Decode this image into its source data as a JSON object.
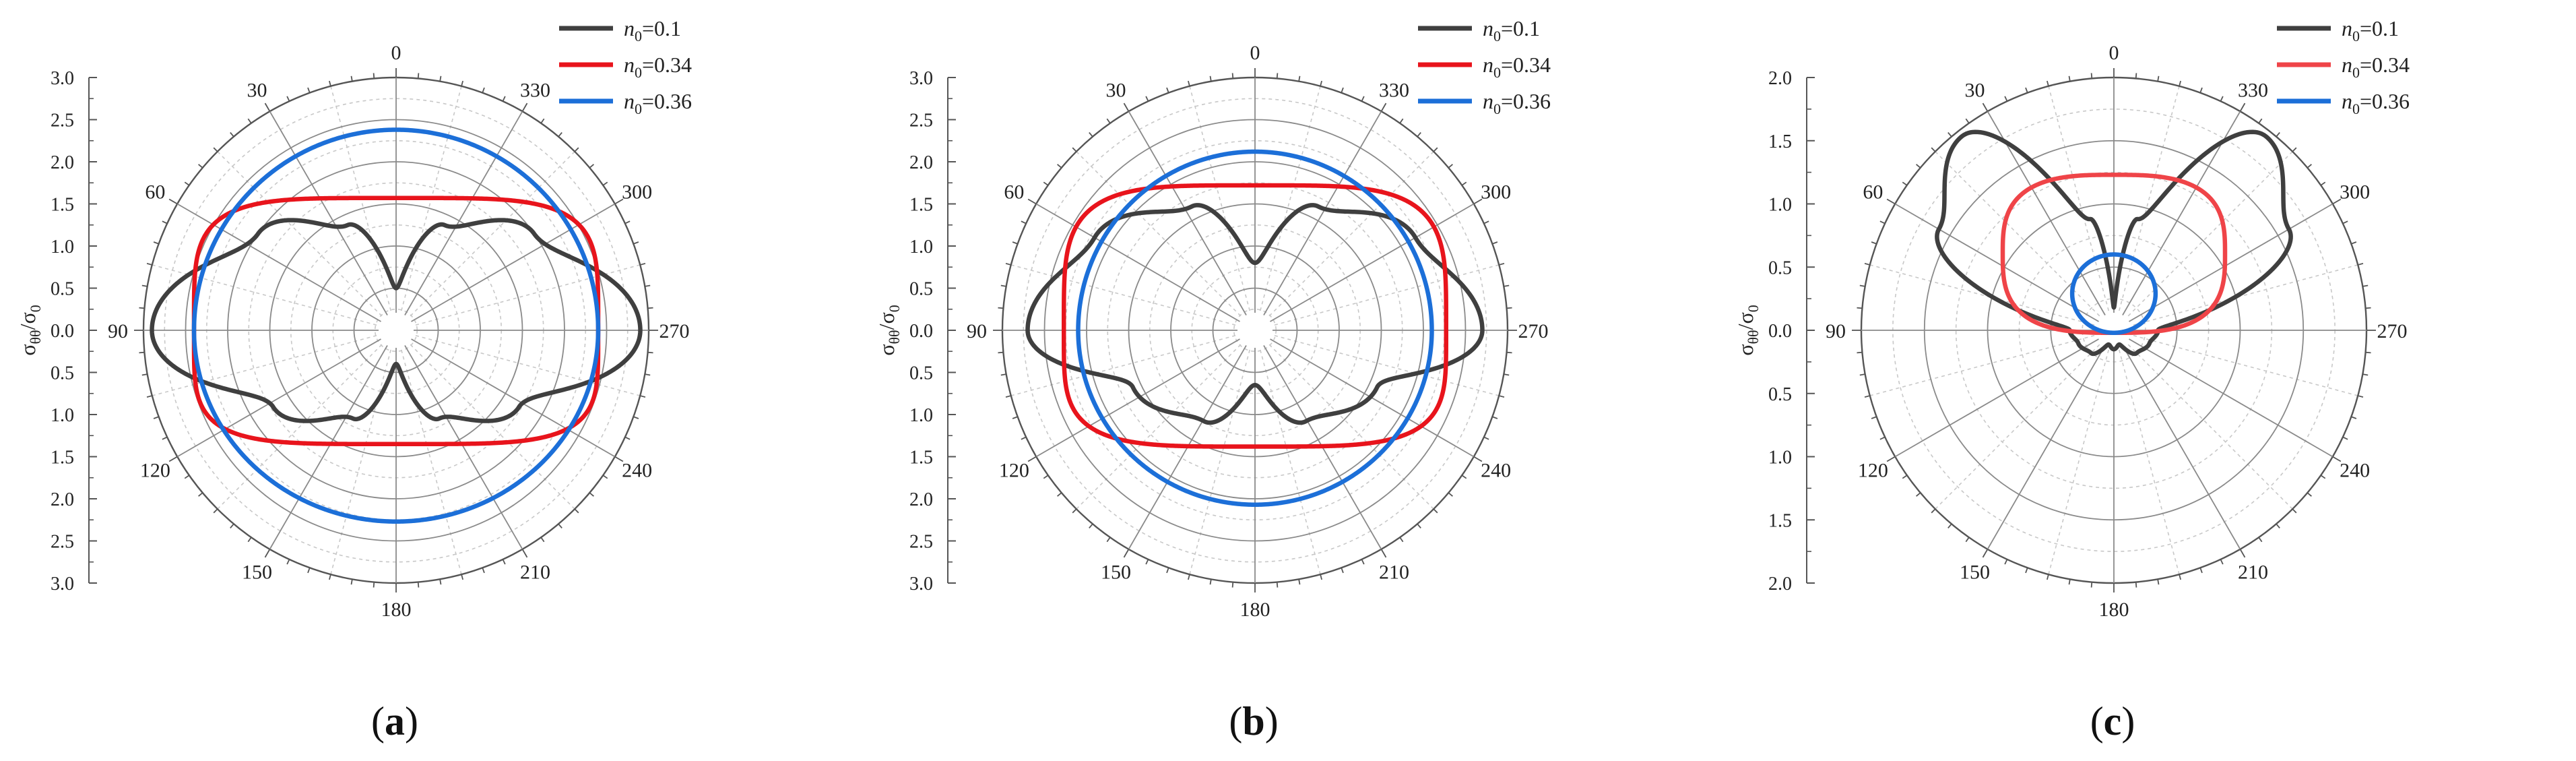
{
  "figure": {
    "panels": [
      {
        "label_open": "(",
        "label_letter": "a",
        "label_close": ")"
      },
      {
        "label_open": "(",
        "label_letter": "b",
        "label_close": ")"
      },
      {
        "label_open": "(",
        "label_letter": "c",
        "label_close": ")"
      }
    ]
  },
  "colors": {
    "n01": "#3f3f3f",
    "n034a": "#e8141c",
    "n034c": "#ef4448",
    "n036": "#1c6fd8",
    "grid": "#8a8a8a",
    "minor": "#c8c8c8"
  },
  "chart_data": [
    {
      "type": "polar-line",
      "panel": "a",
      "ylabel": "σθθ/σ0",
      "ylabel_main": "σ",
      "ylabel_sub1": "θθ",
      "ylabel_slash": "/σ",
      "ylabel_sub2": "0",
      "r_max": 3.0,
      "rlim": [
        0,
        3.0
      ],
      "r_ticks": [
        "3.0",
        "2.5",
        "2.0",
        "1.5",
        "1.0",
        "0.5",
        "0.0",
        "0.5",
        "1.0",
        "1.5",
        "2.0",
        "2.5",
        "3.0"
      ],
      "angle_ticks": [
        "0",
        "30",
        "60",
        "90",
        "120",
        "150",
        "180",
        "210",
        "240",
        "270",
        "300",
        "330"
      ],
      "theta_direction": "counterclockwise from top",
      "legend_position": "top-right",
      "series": [
        {
          "name_var": "n",
          "name_sub": "0",
          "name_val": "=0.1",
          "color_key": "n01",
          "type": "anisotropic",
          "r0": 0.5,
          "r90": 2.9,
          "r180": 0.4,
          "r270": 2.9,
          "up_max": 2.0,
          "up_peak_deg": 55,
          "down_max": 1.72,
          "down_peak_deg": 122
        },
        {
          "name_var": "n",
          "name_sub": "0",
          "name_val": "=0.34",
          "color_key": "n034a",
          "type": "super",
          "a": 2.4,
          "b_top": 1.57,
          "b_bot": 1.35,
          "p": 4.5
        },
        {
          "name_var": "n",
          "name_sub": "0",
          "name_val": "=0.36",
          "color_key": "n036",
          "type": "super",
          "a": 2.4,
          "b_top": 2.38,
          "b_bot": 2.27,
          "p": 2.0
        }
      ]
    },
    {
      "type": "polar-line",
      "panel": "b",
      "ylabel": "σθθ/σ0",
      "ylabel_main": "σ",
      "ylabel_sub1": "θθ",
      "ylabel_slash": "/σ",
      "ylabel_sub2": "0",
      "r_max": 3.0,
      "rlim": [
        0,
        3.0
      ],
      "r_ticks": [
        "3.0",
        "2.5",
        "2.0",
        "1.5",
        "1.0",
        "0.5",
        "0.0",
        "0.5",
        "1.0",
        "1.5",
        "2.0",
        "2.5",
        "3.0"
      ],
      "angle_ticks": [
        "0",
        "30",
        "60",
        "90",
        "120",
        "150",
        "180",
        "210",
        "240",
        "270",
        "300",
        "330"
      ],
      "theta_direction": "counterclockwise from top",
      "legend_position": "top-right",
      "series": [
        {
          "name_var": "n",
          "name_sub": "0",
          "name_val": "=0.1",
          "color_key": "n01",
          "type": "anisotropic",
          "r0": 0.8,
          "r90": 2.7,
          "r180": 0.65,
          "r270": 2.7,
          "up_max": 2.2,
          "up_peak_deg": 60,
          "down_max": 1.6,
          "down_peak_deg": 115
        },
        {
          "name_var": "n",
          "name_sub": "0",
          "name_val": "=0.34",
          "color_key": "n034a",
          "type": "super",
          "a": 2.27,
          "b_top": 1.72,
          "b_bot": 1.38,
          "p": 4.2
        },
        {
          "name_var": "n",
          "name_sub": "0",
          "name_val": "=0.36",
          "color_key": "n036",
          "type": "super",
          "a": 2.1,
          "b_top": 2.12,
          "b_bot": 2.07,
          "p": 2.0
        }
      ]
    },
    {
      "type": "polar-line",
      "panel": "c",
      "ylabel": "σθθ/σ0",
      "ylabel_main": "σ",
      "ylabel_sub1": "θθ",
      "ylabel_slash": "/σ",
      "ylabel_sub2": "0",
      "r_max": 2.0,
      "rlim": [
        0,
        2.0
      ],
      "r_ticks": [
        "2.0",
        "1.5",
        "1.0",
        "0.5",
        "0.0",
        "0.5",
        "1.0",
        "1.5",
        "2.0"
      ],
      "angle_ticks": [
        "0",
        "30",
        "60",
        "90",
        "120",
        "150",
        "180",
        "210",
        "240",
        "270",
        "300",
        "330"
      ],
      "theta_direction": "counterclockwise from top",
      "legend_position": "top-right",
      "series": [
        {
          "name_var": "n",
          "name_sub": "0",
          "name_val": "=0.1",
          "color_key": "n01",
          "type": "lobes",
          "r0": 0.18,
          "peak": 1.95,
          "peak_deg": 38,
          "r90": 0.35,
          "lower": 0.3,
          "r180": 0.15
        },
        {
          "name_var": "n",
          "name_sub": "0",
          "name_val": "=0.34",
          "color_key": "n034c",
          "type": "offset-circle",
          "top": 1.23,
          "bottom": 0.02,
          "half_width": 0.88,
          "p": 3.0
        },
        {
          "name_var": "n",
          "name_sub": "0",
          "name_val": "=0.36",
          "color_key": "n036",
          "type": "offset-circle",
          "top": 0.6,
          "bottom": 0.02,
          "half_width": 0.33,
          "p": 2.0
        }
      ]
    }
  ]
}
